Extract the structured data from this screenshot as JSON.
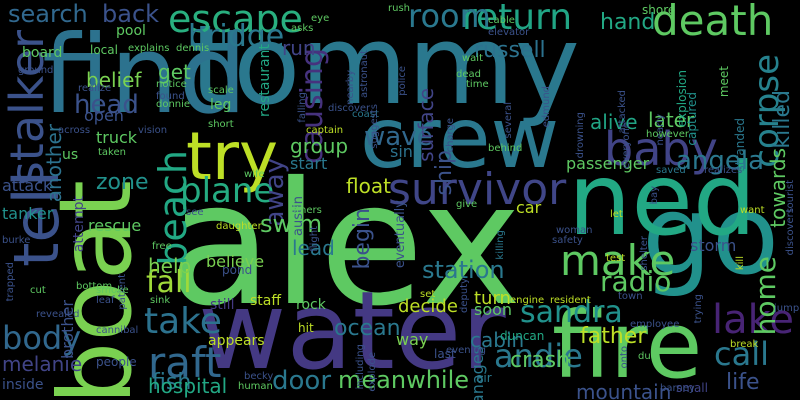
{
  "words": [
    {
      "t": "alex",
      "c": "#5ec962"
    },
    {
      "t": "tommy",
      "c": "#2a788e"
    },
    {
      "t": "find",
      "c": "#2c728e"
    },
    {
      "t": "water",
      "c": "#443983"
    },
    {
      "t": "boat",
      "c": "#7ad151"
    },
    {
      "t": "go",
      "c": "#21918c"
    },
    {
      "t": "ned",
      "c": "#22a884"
    },
    {
      "t": "crew",
      "c": "#2a788e"
    },
    {
      "t": "fire",
      "c": "#5ec962"
    },
    {
      "t": "tell",
      "c": "#3b528b"
    },
    {
      "t": "try",
      "c": "#bddf26"
    },
    {
      "t": "survivor",
      "c": "#404688"
    },
    {
      "t": "stalker",
      "c": "#3b528b"
    },
    {
      "t": "death",
      "c": "#5ec962"
    },
    {
      "t": "return",
      "c": "#21a585"
    },
    {
      "t": "escape",
      "c": "#29af7f"
    },
    {
      "t": "baby",
      "c": "#414487"
    },
    {
      "t": "make",
      "c": "#5ec962"
    },
    {
      "t": "raft",
      "c": "#31688e"
    },
    {
      "t": "lake",
      "c": "#482475"
    },
    {
      "t": "beach",
      "c": "#22a884"
    },
    {
      "t": "take",
      "c": "#2c728e"
    },
    {
      "t": "plane",
      "c": "#25ac82"
    },
    {
      "t": "fall",
      "c": "#9fda3a"
    },
    {
      "t": "body",
      "c": "#31688e"
    },
    {
      "t": "corpse",
      "c": "#26828e"
    },
    {
      "t": "sandra",
      "c": "#21918c"
    },
    {
      "t": "room",
      "c": "#2a788e"
    },
    {
      "t": "bridge",
      "c": "#2a788e"
    },
    {
      "t": "causing",
      "c": "#46327e"
    },
    {
      "t": "andie",
      "c": "#2a788e"
    },
    {
      "t": "radio",
      "c": "#5ec962"
    },
    {
      "t": "call",
      "c": "#2a788e"
    },
    {
      "t": "home",
      "c": "#5ec962"
    },
    {
      "t": "angela",
      "c": "#2a788e"
    },
    {
      "t": "wave",
      "c": "#31688e"
    },
    {
      "t": "meanwhile",
      "c": "#5ec962"
    },
    {
      "t": "door",
      "c": "#2a788e"
    },
    {
      "t": "head",
      "c": "#3b528b"
    },
    {
      "t": "search",
      "c": "#31688e"
    },
    {
      "t": "back",
      "c": "#3b528b"
    },
    {
      "t": "russell",
      "c": "#2c728e"
    },
    {
      "t": "hand",
      "c": "#22a884"
    },
    {
      "t": "killed",
      "c": "#2a788e"
    },
    {
      "t": "surface",
      "c": "#414487"
    },
    {
      "t": "away",
      "c": "#414487"
    },
    {
      "t": "begin",
      "c": "#3b528b"
    },
    {
      "t": "swim",
      "c": "#5ec962"
    },
    {
      "t": "station",
      "c": "#2a788e"
    },
    {
      "t": "crash",
      "c": "#5ec962"
    },
    {
      "t": "life",
      "c": "#3b528b"
    },
    {
      "t": "fish",
      "c": "#2a788e"
    },
    {
      "t": "hospital",
      "c": "#22a884"
    },
    {
      "t": "melanie",
      "c": "#414487"
    },
    {
      "t": "cabin",
      "c": "#2a788e"
    },
    {
      "t": "another",
      "c": "#2c728e"
    },
    {
      "t": "help",
      "c": "#7ad151"
    },
    {
      "t": "zone",
      "c": "#21918c"
    },
    {
      "t": "ocean",
      "c": "#2a788e"
    },
    {
      "t": "ship",
      "c": "#3b528b"
    },
    {
      "t": "alive",
      "c": "#21a585"
    },
    {
      "t": "later",
      "c": "#5ec962"
    },
    {
      "t": "towards",
      "c": "#5ec962"
    },
    {
      "t": "father",
      "c": "#bddf26"
    },
    {
      "t": "mountain",
      "c": "#3b528b"
    },
    {
      "t": "run",
      "c": "#414487"
    },
    {
      "t": "get",
      "c": "#5ec962"
    },
    {
      "t": "belief",
      "c": "#7ad151"
    },
    {
      "t": "lead",
      "c": "#2a788e"
    },
    {
      "t": "float",
      "c": "#bddf26"
    },
    {
      "t": "car",
      "c": "#bddf26"
    },
    {
      "t": "sin",
      "c": "#2c728e"
    },
    {
      "t": "group",
      "c": "#5ec962"
    },
    {
      "t": "start",
      "c": "#2a788e"
    },
    {
      "t": "passenger",
      "c": "#5ec962"
    },
    {
      "t": "storm",
      "c": "#3b528b"
    },
    {
      "t": "turn",
      "c": "#bddf26"
    },
    {
      "t": "decide",
      "c": "#bddf26"
    },
    {
      "t": "soon",
      "c": "#5ec962"
    },
    {
      "t": "way",
      "c": "#7ad151"
    },
    {
      "t": "manages",
      "c": "#2a788e"
    },
    {
      "t": "attack",
      "c": "#3b528b"
    },
    {
      "t": "tanker",
      "c": "#21918c"
    },
    {
      "t": "rescue",
      "c": "#5ec962"
    },
    {
      "t": "attempt",
      "c": "#414487"
    },
    {
      "t": "believe",
      "c": "#7ad151"
    },
    {
      "t": "brother",
      "c": "#3b528b"
    },
    {
      "t": "us",
      "c": "#5ec962"
    },
    {
      "t": "truck",
      "c": "#5ec962"
    },
    {
      "t": "open",
      "c": "#3b528b"
    },
    {
      "t": "leg",
      "c": "#5ec962"
    },
    {
      "t": "restaurant",
      "c": "#22a884"
    },
    {
      "t": "pool",
      "c": "#5ec962"
    },
    {
      "t": "board",
      "c": "#5ec962"
    },
    {
      "t": "local",
      "c": "#5ec962"
    },
    {
      "t": "eventually",
      "c": "#3b528b"
    },
    {
      "t": "austin",
      "c": "#3b528b"
    },
    {
      "t": "rock",
      "c": "#5ec962"
    },
    {
      "t": "staff",
      "c": "#bddf26"
    },
    {
      "t": "still",
      "c": "#443983"
    },
    {
      "t": "pond",
      "c": "#3b528b"
    },
    {
      "t": "appears",
      "c": "#bddf26"
    },
    {
      "t": "hit",
      "c": "#bddf26"
    },
    {
      "t": "duncan",
      "c": "#22a884"
    },
    {
      "t": "last",
      "c": "#3b528b"
    },
    {
      "t": "air",
      "c": "#2a788e"
    },
    {
      "t": "people",
      "c": "#3b528b"
    },
    {
      "t": "inside",
      "c": "#3b528b"
    },
    {
      "t": "small",
      "c": "#414487"
    },
    {
      "t": "barney",
      "c": "#3b528b"
    },
    {
      "t": "human",
      "c": "#5ec962"
    },
    {
      "t": "becky",
      "c": "#3b528b"
    },
    {
      "t": "break",
      "c": "#bddf26"
    },
    {
      "t": "shore",
      "c": "#5ec962"
    },
    {
      "t": "meet",
      "c": "#5ec962"
    },
    {
      "t": "stranded",
      "c": "#2a788e"
    },
    {
      "t": "explosion",
      "c": "#22a884"
    },
    {
      "t": "captured",
      "c": "#21918c"
    },
    {
      "t": "saved",
      "c": "#2a788e"
    },
    {
      "t": "realizes",
      "c": "#3b528b"
    },
    {
      "t": "want",
      "c": "#bddf26"
    },
    {
      "t": "discovers",
      "c": "#3b528b"
    },
    {
      "t": "tourist",
      "c": "#3b528b"
    },
    {
      "t": "jump",
      "c": "#3b528b"
    },
    {
      "t": "kill",
      "c": "#bddf26"
    },
    {
      "t": "trying",
      "c": "#3b528b"
    },
    {
      "t": "town",
      "c": "#3b528b"
    },
    {
      "t": "employee",
      "c": "#3b528b"
    },
    {
      "t": "due",
      "c": "#5ec962"
    },
    {
      "t": "onto",
      "c": "#3b528b"
    },
    {
      "t": "engine",
      "c": "#bddf26"
    },
    {
      "t": "resident",
      "c": "#bddf26"
    },
    {
      "t": "deputy",
      "c": "#3b528b"
    },
    {
      "t": "test",
      "c": "#bddf26"
    },
    {
      "t": "let",
      "c": "#bddf26"
    },
    {
      "t": "safety",
      "c": "#3b528b"
    },
    {
      "t": "woman",
      "c": "#3b528b"
    },
    {
      "t": "shelter",
      "c": "#3b528b"
    },
    {
      "t": "bay",
      "c": "#3b528b"
    },
    {
      "t": "give",
      "c": "#5ec962"
    },
    {
      "t": "set",
      "c": "#bddf26"
    },
    {
      "t": "evening",
      "c": "#3b528b"
    },
    {
      "t": "including",
      "c": "#3b528b"
    },
    {
      "t": "explode",
      "c": "#3b528b"
    },
    {
      "t": "killing",
      "c": "#2a788e"
    },
    {
      "t": "behind",
      "c": "#5ec962"
    },
    {
      "t": "charge",
      "c": "#3b528b"
    },
    {
      "t": "captain",
      "c": "#bddf26"
    },
    {
      "t": "coast",
      "c": "#2a788e"
    },
    {
      "t": "discover",
      "c": "#3b528b"
    },
    {
      "t": "nearby",
      "c": "#3b528b"
    },
    {
      "t": "police",
      "c": "#3b528b"
    },
    {
      "t": "suggests",
      "c": "#3b528b"
    },
    {
      "t": "astronaut",
      "c": "#3b528b"
    },
    {
      "t": "rush",
      "c": "#5ec962"
    },
    {
      "t": "cable",
      "c": "#5ec962"
    },
    {
      "t": "eye",
      "c": "#5ec962"
    },
    {
      "t": "asks",
      "c": "#5ec962"
    },
    {
      "t": "elevator",
      "c": "#3b528b"
    },
    {
      "t": "wait",
      "c": "#5ec962"
    },
    {
      "t": "dead",
      "c": "#5ec962"
    },
    {
      "t": "time",
      "c": "#5ec962"
    },
    {
      "t": "several",
      "c": "#3b528b"
    },
    {
      "t": "edmund",
      "c": "#3b528b"
    },
    {
      "t": "drowning",
      "c": "#3b528b"
    },
    {
      "t": "attacked",
      "c": "#3b528b"
    },
    {
      "t": "everyone",
      "c": "#3b528b"
    },
    {
      "t": "nearly",
      "c": "#3b528b"
    },
    {
      "t": "however",
      "c": "#5ec962"
    },
    {
      "t": "falling",
      "c": "#3b528b"
    },
    {
      "t": "explains",
      "c": "#5ec962"
    },
    {
      "t": "dennis",
      "c": "#5ec962"
    },
    {
      "t": "notice",
      "c": "#5ec962"
    },
    {
      "t": "found",
      "c": "#3b528b"
    },
    {
      "t": "donnie",
      "c": "#5ec962"
    },
    {
      "t": "scale",
      "c": "#5ec962"
    },
    {
      "t": "realize",
      "c": "#3b528b"
    },
    {
      "t": "short",
      "c": "#5ec962"
    },
    {
      "t": "vision",
      "c": "#3b528b"
    },
    {
      "t": "across",
      "c": "#3b528b"
    },
    {
      "t": "taken",
      "c": "#5ec962"
    },
    {
      "t": "wife",
      "c": "#5ec962"
    },
    {
      "t": "daughter",
      "c": "#bddf26"
    },
    {
      "t": "others",
      "c": "#5ec962"
    },
    {
      "t": "flight",
      "c": "#3b528b"
    },
    {
      "t": "free",
      "c": "#5ec962"
    },
    {
      "t": "patient",
      "c": "#3b528b"
    },
    {
      "t": "see",
      "c": "#3b528b"
    },
    {
      "t": "burke",
      "c": "#3b528b"
    },
    {
      "t": "trapped",
      "c": "#3b528b"
    },
    {
      "t": "cut",
      "c": "#5ec962"
    },
    {
      "t": "bottom",
      "c": "#5ec962"
    },
    {
      "t": "smoke",
      "c": "#5ec962"
    },
    {
      "t": "leaf",
      "c": "#3b528b"
    },
    {
      "t": "sink",
      "c": "#5ec962"
    },
    {
      "t": "revealed",
      "c": "#3b528b"
    },
    {
      "t": "cannibal",
      "c": "#3b528b"
    },
    {
      "t": "ground",
      "c": "#3b528b"
    }
  ]
}
